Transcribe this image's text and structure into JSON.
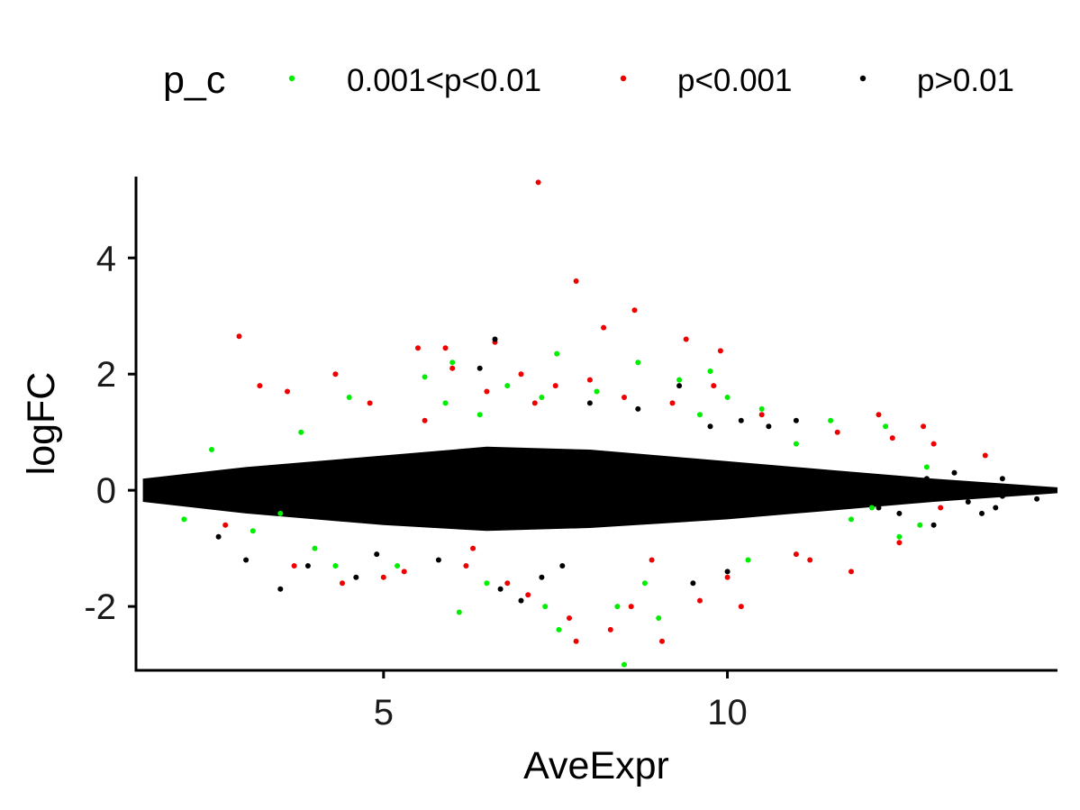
{
  "chart_data": {
    "type": "scatter",
    "title": "",
    "xlabel": "AveExpr",
    "ylabel": "logFC",
    "xlim": [
      1.4,
      14.8
    ],
    "ylim": [
      -3.1,
      5.4
    ],
    "x_ticks": [
      5,
      10
    ],
    "y_ticks": [
      -2,
      0,
      2,
      4
    ],
    "x_tick_labels": [
      "5",
      "10"
    ],
    "y_tick_labels": [
      "-2",
      "0",
      "2",
      "4"
    ],
    "grid": false,
    "legend": {
      "title": "p_c",
      "position": "top",
      "entries": [
        "0.001<p<0.01",
        "p<0.001",
        "p>0.01"
      ]
    },
    "series": [
      {
        "name": "0.001<p<0.01",
        "color": "#00ee00",
        "points": [
          [
            7.52,
            2.35
          ],
          [
            8.7,
            2.2
          ],
          [
            9.75,
            2.05
          ],
          [
            6.0,
            2.2
          ],
          [
            5.6,
            1.95
          ],
          [
            4.5,
            1.6
          ],
          [
            9.3,
            1.9
          ],
          [
            10.0,
            1.6
          ],
          [
            10.5,
            1.4
          ],
          [
            11.5,
            1.2
          ],
          [
            12.3,
            1.1
          ],
          [
            12.9,
            0.4
          ],
          [
            12.8,
            -0.6
          ],
          [
            12.5,
            -0.8
          ],
          [
            11.8,
            -0.5
          ],
          [
            7.35,
            -2.0
          ],
          [
            7.55,
            -2.4
          ],
          [
            8.5,
            -3.0
          ],
          [
            8.4,
            -2.0
          ],
          [
            9.0,
            -2.2
          ],
          [
            6.1,
            -2.1
          ],
          [
            5.2,
            -1.3
          ],
          [
            4.3,
            -1.3
          ],
          [
            3.5,
            -0.4
          ],
          [
            2.5,
            0.7
          ],
          [
            2.1,
            -0.5
          ],
          [
            3.1,
            -0.7
          ],
          [
            7.3,
            1.6
          ],
          [
            6.8,
            1.8
          ],
          [
            8.1,
            1.7
          ],
          [
            6.5,
            -1.6
          ],
          [
            8.8,
            -1.6
          ],
          [
            10.3,
            -1.2
          ],
          [
            11.0,
            0.8
          ],
          [
            3.8,
            1.0
          ],
          [
            4.0,
            -1.0
          ],
          [
            12.1,
            -0.3
          ],
          [
            9.6,
            1.3
          ],
          [
            5.9,
            1.5
          ],
          [
            6.4,
            1.3
          ]
        ]
      },
      {
        "name": "p<0.001",
        "color": "#ee0000",
        "points": [
          [
            7.25,
            5.3
          ],
          [
            7.8,
            3.6
          ],
          [
            8.65,
            3.1
          ],
          [
            2.9,
            2.65
          ],
          [
            6.62,
            2.55
          ],
          [
            9.4,
            2.6
          ],
          [
            8.2,
            2.8
          ],
          [
            9.9,
            2.4
          ],
          [
            5.5,
            2.45
          ],
          [
            5.9,
            2.45
          ],
          [
            3.2,
            1.8
          ],
          [
            3.6,
            1.7
          ],
          [
            4.3,
            2.0
          ],
          [
            6.0,
            2.1
          ],
          [
            7.0,
            2.0
          ],
          [
            7.5,
            1.8
          ],
          [
            8.0,
            1.9
          ],
          [
            10.5,
            1.3
          ],
          [
            11.6,
            1.0
          ],
          [
            12.2,
            1.3
          ],
          [
            12.85,
            1.1
          ],
          [
            13.0,
            0.8
          ],
          [
            13.75,
            0.6
          ],
          [
            13.1,
            -0.3
          ],
          [
            12.5,
            -0.9
          ],
          [
            11.8,
            -1.4
          ],
          [
            11.2,
            -1.2
          ],
          [
            10.2,
            -2.0
          ],
          [
            9.6,
            -1.9
          ],
          [
            9.05,
            -2.6
          ],
          [
            8.3,
            -2.4
          ],
          [
            7.8,
            -2.6
          ],
          [
            7.7,
            -2.2
          ],
          [
            6.8,
            -1.6
          ],
          [
            6.2,
            -1.3
          ],
          [
            5.3,
            -1.4
          ],
          [
            5.0,
            -1.5
          ],
          [
            4.4,
            -1.6
          ],
          [
            3.7,
            -1.3
          ],
          [
            2.7,
            -0.6
          ],
          [
            6.5,
            1.7
          ],
          [
            7.2,
            1.5
          ],
          [
            8.5,
            1.6
          ],
          [
            9.2,
            1.5
          ],
          [
            6.3,
            -1.0
          ],
          [
            8.9,
            -1.2
          ],
          [
            10.0,
            -1.5
          ],
          [
            11.0,
            -1.1
          ],
          [
            7.1,
            -1.8
          ],
          [
            8.6,
            -2.0
          ],
          [
            12.4,
            0.9
          ],
          [
            5.6,
            1.2
          ],
          [
            9.8,
            1.8
          ],
          [
            4.8,
            1.5
          ]
        ]
      },
      {
        "name": "p>0.01",
        "color": "#000000",
        "points": [
          [
            6.62,
            2.6
          ],
          [
            9.3,
            1.8
          ],
          [
            9.75,
            1.1
          ],
          [
            10.2,
            1.2
          ],
          [
            11.0,
            1.2
          ],
          [
            10.6,
            1.1
          ],
          [
            3.5,
            -1.7
          ],
          [
            4.6,
            -1.5
          ],
          [
            3.9,
            -1.3
          ],
          [
            3.0,
            -1.2
          ],
          [
            7.0,
            -1.9
          ],
          [
            6.7,
            -1.7
          ],
          [
            9.5,
            -1.6
          ],
          [
            10.0,
            -1.4
          ],
          [
            7.3,
            -1.5
          ],
          [
            6.4,
            2.1
          ],
          [
            12.5,
            -0.4
          ],
          [
            13.0,
            -0.6
          ],
          [
            13.5,
            -0.2
          ],
          [
            14.0,
            -0.1
          ],
          [
            14.5,
            -0.15
          ],
          [
            14.0,
            0.2
          ],
          [
            13.3,
            0.3
          ],
          [
            12.9,
            0.2
          ],
          [
            12.2,
            -0.3
          ],
          [
            11.9,
            0.1
          ],
          [
            13.7,
            -0.4
          ],
          [
            14.3,
            0.0
          ],
          [
            12.6,
            0.05
          ],
          [
            13.9,
            -0.3
          ],
          [
            8.0,
            1.5
          ],
          [
            8.7,
            1.4
          ],
          [
            7.6,
            -1.3
          ],
          [
            5.8,
            -1.2
          ],
          [
            4.9,
            -1.1
          ],
          [
            2.6,
            -0.8
          ]
        ]
      }
    ],
    "dense_band": {
      "series": "p>0.01",
      "color": "#000000",
      "x_range": [
        1.5,
        14.8
      ],
      "center_y": 0.0,
      "upper_y": [
        [
          1.5,
          0.2
        ],
        [
          3.0,
          0.4
        ],
        [
          5.0,
          0.6
        ],
        [
          6.5,
          0.75
        ],
        [
          8.0,
          0.7
        ],
        [
          10.0,
          0.5
        ],
        [
          11.5,
          0.35
        ],
        [
          13.0,
          0.2
        ],
        [
          14.8,
          0.05
        ]
      ],
      "lower_y": [
        [
          1.5,
          -0.2
        ],
        [
          3.0,
          -0.4
        ],
        [
          5.0,
          -0.6
        ],
        [
          6.5,
          -0.7
        ],
        [
          8.0,
          -0.65
        ],
        [
          10.0,
          -0.5
        ],
        [
          11.5,
          -0.35
        ],
        [
          13.0,
          -0.2
        ],
        [
          14.8,
          -0.05
        ]
      ]
    }
  }
}
